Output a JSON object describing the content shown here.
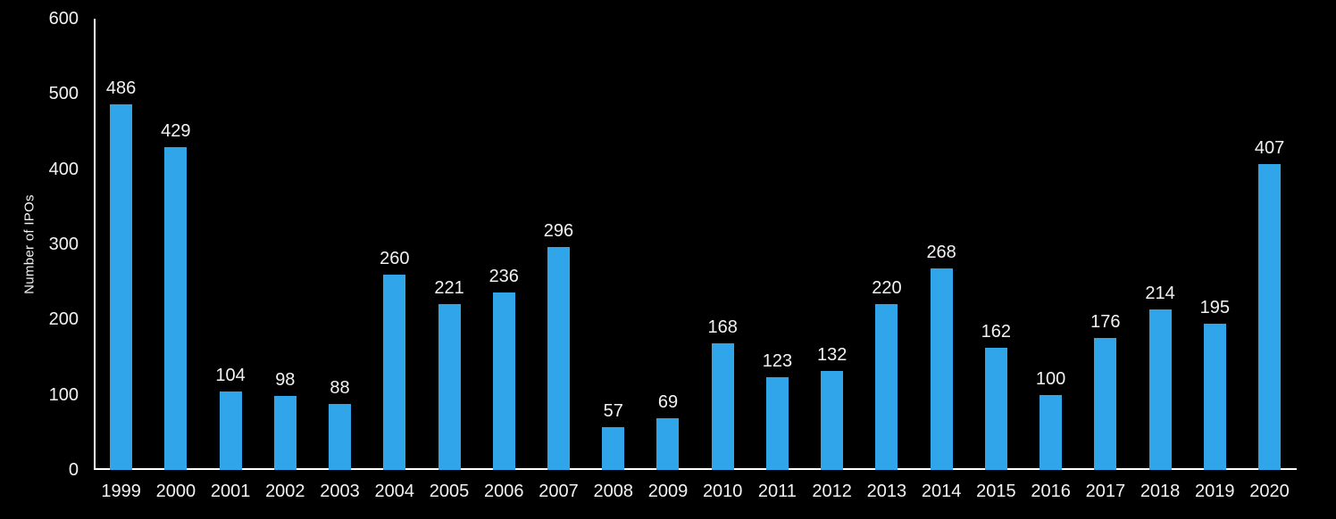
{
  "chart_data": {
    "type": "bar",
    "title": "",
    "xlabel": "",
    "ylabel": "Number of IPOs",
    "categories": [
      "1999",
      "2000",
      "2001",
      "2002",
      "2003",
      "2004",
      "2005",
      "2006",
      "2007",
      "2008",
      "2009",
      "2010",
      "2011",
      "2012",
      "2013",
      "2014",
      "2015",
      "2016",
      "2017",
      "2018",
      "2019",
      "2020"
    ],
    "values": [
      486,
      429,
      104,
      98,
      88,
      260,
      221,
      236,
      296,
      57,
      69,
      168,
      123,
      132,
      220,
      268,
      162,
      100,
      176,
      214,
      195,
      407
    ],
    "ylim": [
      0,
      600
    ],
    "yticks": [
      0,
      100,
      200,
      300,
      400,
      500,
      600
    ],
    "grid": false,
    "legend": false,
    "value_labels_shown": true,
    "colors": {
      "bar": "#30a5e9",
      "background": "#000000",
      "text": "#f2f2f2",
      "axis": "#ffffff"
    }
  }
}
